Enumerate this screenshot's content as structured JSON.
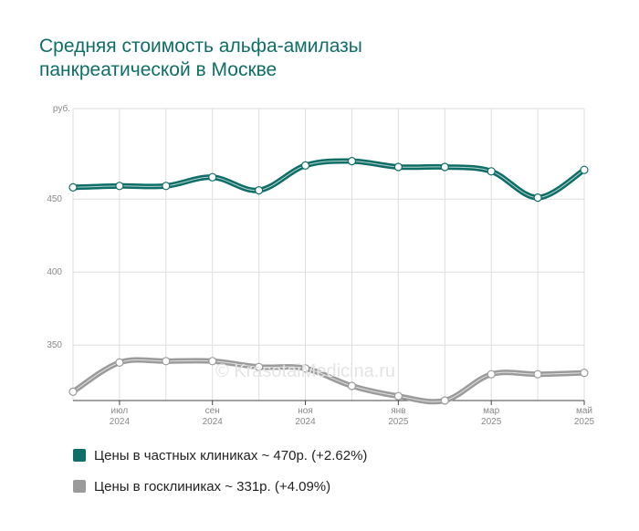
{
  "header": {
    "title_line1": "Средняя стоимость альфа-амилазы",
    "title_line2": "панкреатической в Москве"
  },
  "watermark": "© KrasotaiMedicina.ru",
  "colors": {
    "private": "#0f6e67",
    "public": "#9b9b9b",
    "title": "#0f6e67"
  },
  "legend": [
    {
      "label": "Цены в частных клиниках ~ 470р. (+2.62%)",
      "color": "#0f6e67"
    },
    {
      "label": "Цены в госклиниках ~ 331р. (+4.09%)",
      "color": "#9b9b9b"
    }
  ],
  "chart_data": {
    "type": "line",
    "y_unit": "руб.",
    "ylim": [
      312,
      512
    ],
    "yticks": [
      350,
      400,
      450
    ],
    "grid": true,
    "x": [
      "2024-06",
      "2024-07",
      "2024-08",
      "2024-09",
      "2024-10",
      "2024-11",
      "2024-12",
      "2025-01",
      "2025-02",
      "2025-03",
      "2025-04",
      "2025-05"
    ],
    "x_tick_labels": [
      {
        "index": 1,
        "month": "июл",
        "year": "2024"
      },
      {
        "index": 3,
        "month": "сен",
        "year": "2024"
      },
      {
        "index": 5,
        "month": "ноя",
        "year": "2024"
      },
      {
        "index": 7,
        "month": "янв",
        "year": "2025"
      },
      {
        "index": 9,
        "month": "мар",
        "year": "2025"
      },
      {
        "index": 11,
        "month": "май",
        "year": "2025"
      }
    ],
    "series": [
      {
        "name": "Цены в частных клиниках",
        "color": "#0f6e67",
        "values": [
          458,
          459,
          459,
          465,
          456,
          473,
          476,
          472,
          472,
          469,
          451,
          470
        ]
      },
      {
        "name": "Цены в госклиниках",
        "color": "#9b9b9b",
        "values": [
          318,
          338,
          339,
          339,
          335,
          334,
          322,
          315,
          312,
          330,
          330,
          331
        ]
      }
    ]
  }
}
